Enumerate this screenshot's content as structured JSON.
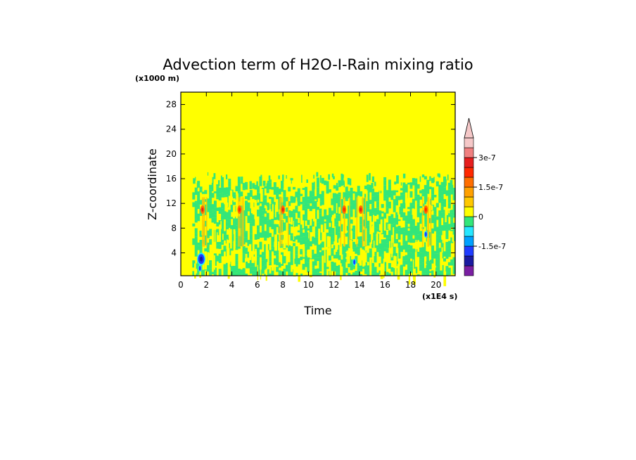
{
  "chart_data": {
    "type": "heatmap",
    "title": "Advection term of H2O-I-Rain mixing ratio",
    "xlabel": "Time",
    "ylabel": "Z-coordinate",
    "x_unit": "(x1E4 s)",
    "y_unit": "(x1000 m)",
    "xlim": [
      0,
      21.5
    ],
    "ylim": [
      0.3,
      30
    ],
    "x_ticks": [
      0,
      2,
      4,
      6,
      8,
      10,
      12,
      14,
      16,
      18,
      20
    ],
    "y_ticks": [
      4,
      8,
      12,
      16,
      20,
      24,
      28
    ],
    "background_level_color": "#ffff00",
    "colorbar": {
      "colors": [
        "#7a1fa2",
        "#1a1aa0",
        "#1f3cff",
        "#00a0ff",
        "#26e6ff",
        "#32e67a",
        "#ffff00",
        "#ffc800",
        "#ffa000",
        "#ff6e00",
        "#ff2800",
        "#e61e1e",
        "#f08080",
        "#f5c8c8"
      ],
      "ticks": [
        {
          "value": 3e-07,
          "label": "3e-7"
        },
        {
          "value": 1.5e-07,
          "label": "1.5e-7"
        },
        {
          "value": 0,
          "label": "0"
        },
        {
          "value": -1.5e-07,
          "label": "-1.5e-7"
        }
      ],
      "extend_max": true
    },
    "features": {
      "field_top_z": 15.0,
      "field_start_x": 0.9,
      "warm_columns_x": [
        1.7,
        4.6,
        8.0,
        12.8,
        14.1,
        19.2
      ],
      "warm_peak_z": 11.0,
      "cold_spots": [
        {
          "x": 1.6,
          "z": 3.0
        },
        {
          "x": 1.5,
          "z": 1.5
        },
        {
          "x": 19.2,
          "z": 7.0
        },
        {
          "x": 13.6,
          "z": 2.5
        }
      ]
    }
  }
}
